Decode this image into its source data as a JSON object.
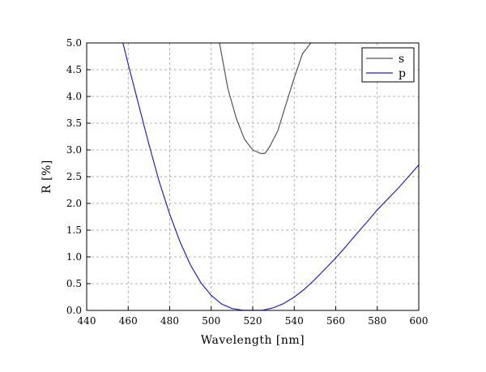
{
  "chart_data": {
    "type": "line",
    "title": "",
    "xlabel": "Wavelength [nm]",
    "ylabel": "R [%]",
    "xlim": [
      440,
      600
    ],
    "ylim": [
      0,
      5
    ],
    "xticks": [
      "440",
      "460",
      "480",
      "500",
      "520",
      "540",
      "560",
      "580",
      "600"
    ],
    "yticks": [
      "0.0",
      "0.5",
      "1.0",
      "1.5",
      "2.0",
      "2.5",
      "3.0",
      "3.5",
      "4.0",
      "4.5",
      "5.0"
    ],
    "grid": true,
    "legend_position": "top-right",
    "series": [
      {
        "name": "s",
        "color": "#555555",
        "x": [
          504,
          508,
          512,
          516,
          520,
          524,
          526,
          528,
          532,
          536,
          540,
          544,
          548
        ],
        "y": [
          5.0,
          4.15,
          3.6,
          3.2,
          3.0,
          2.93,
          2.94,
          3.05,
          3.35,
          3.85,
          4.35,
          4.8,
          5.0
        ]
      },
      {
        "name": "p",
        "color": "#2222cc",
        "x": [
          457.5,
          460,
          465,
          470,
          475,
          480,
          485,
          490,
          495,
          500,
          505,
          510,
          515,
          520,
          525,
          530,
          535,
          540,
          545,
          550,
          555,
          560,
          565,
          570,
          575,
          580,
          585,
          590,
          595,
          600
        ],
        "y": [
          5.0,
          4.6,
          3.85,
          3.1,
          2.4,
          1.8,
          1.28,
          0.85,
          0.52,
          0.28,
          0.12,
          0.035,
          0.005,
          0.0,
          0.005,
          0.05,
          0.13,
          0.25,
          0.4,
          0.58,
          0.78,
          0.98,
          1.2,
          1.43,
          1.65,
          1.88,
          2.08,
          2.28,
          2.5,
          2.72
        ]
      }
    ]
  }
}
